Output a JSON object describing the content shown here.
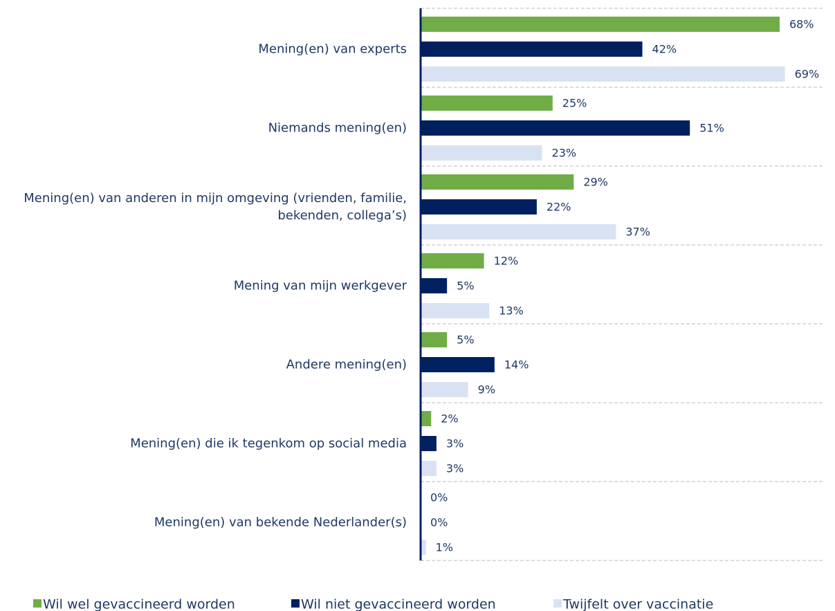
{
  "chart_data": {
    "type": "hbar",
    "categories": [
      "Mening(en) van experts",
      "Niemands mening(en)",
      "Mening(en) van anderen in mijn omgeving (vrienden, familie, bekenden, collega’s)",
      "Mening van mijn werkgever",
      "Andere mening(en)",
      "Mening(en) die ik tegenkom op social media",
      "Mening(en) van bekende Nederlander(s)"
    ],
    "series": [
      {
        "name": "Wil wel gevaccineerd worden",
        "color": "#70ad47",
        "values": [
          68,
          25,
          29,
          12,
          5,
          2,
          0
        ],
        "value_labels": [
          "68%",
          "25%",
          "29%",
          "12%",
          "5%",
          "2%",
          "0%"
        ]
      },
      {
        "name": "Wil niet gevaccineerd worden",
        "color": "#002060",
        "values": [
          42,
          51,
          22,
          5,
          14,
          3,
          0
        ],
        "value_labels": [
          "42%",
          "51%",
          "22%",
          "5%",
          "14%",
          "3%",
          "0%"
        ]
      },
      {
        "name": "Twijfelt over vaccinatie",
        "color": "#d9e2f3",
        "values": [
          69,
          23,
          37,
          13,
          9,
          3,
          1
        ],
        "value_labels": [
          "69%",
          "23%",
          "37%",
          "13%",
          "9%",
          "3%",
          "1%"
        ]
      }
    ],
    "xlim": [
      0,
      76
    ],
    "legend": "bottom"
  }
}
